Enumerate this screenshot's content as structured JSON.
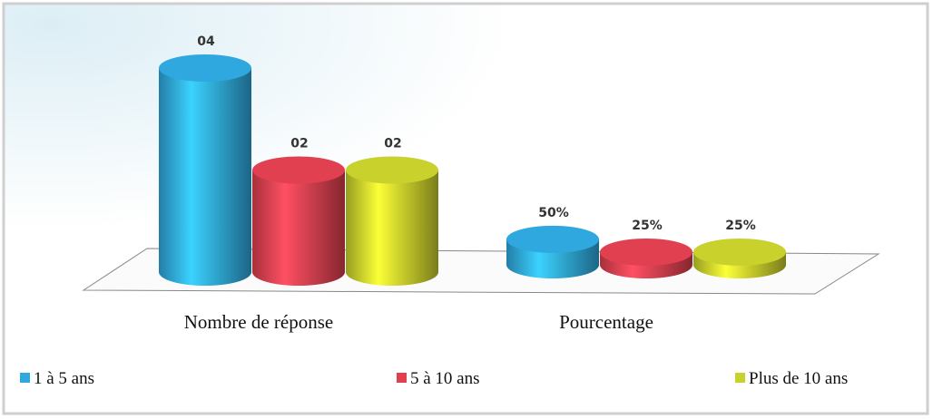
{
  "chart_data": {
    "type": "bar3d",
    "categories": [
      "Nombre de réponse",
      "Pourcentage"
    ],
    "series": [
      {
        "name": "1 à 5 ans",
        "color": "#2fa8e0",
        "values": [
          4,
          0.5
        ],
        "value_labels": [
          "04",
          "50%"
        ]
      },
      {
        "name": "5 à 10 ans",
        "color": "#e0404f",
        "values": [
          2,
          0.25
        ],
        "value_labels": [
          "02",
          "25%"
        ]
      },
      {
        "name": "Plus de 10 ans",
        "color": "#c9d12c",
        "values": [
          2,
          0.25
        ],
        "value_labels": [
          "02",
          "25%"
        ]
      }
    ],
    "legend": "bottom"
  }
}
